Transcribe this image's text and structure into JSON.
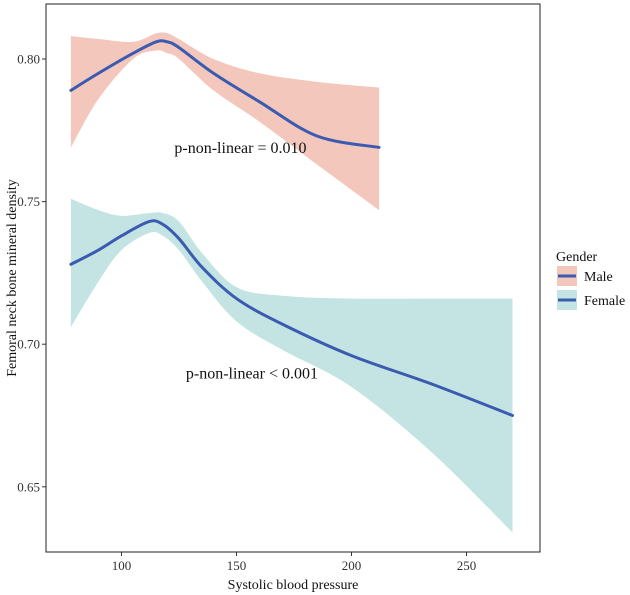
{
  "chart_data": {
    "type": "line",
    "title": "",
    "xlabel": "Systolic blood pressure",
    "ylabel": "Femoral neck bone mineral density",
    "xlim": [
      70,
      280
    ],
    "ylim": [
      0.62,
      0.82
    ],
    "xticks": [
      100,
      150,
      200,
      250
    ],
    "xtick_labels": [
      "100",
      "150",
      "200",
      "250"
    ],
    "yticks": [
      0.65,
      0.7,
      0.75,
      0.8
    ],
    "ytick_labels": [
      "0.65",
      "0.70",
      "0.75",
      "0.80"
    ],
    "grid": false,
    "legend": {
      "title": "Gender",
      "position": "right",
      "entries": [
        "Male",
        "Female"
      ]
    },
    "series": [
      {
        "name": "Male",
        "line_color": "#3B5BB0",
        "ribbon_color": "#F4C7BD",
        "x": [
          78,
          90,
          105,
          115,
          120,
          125,
          140,
          160,
          185,
          212
        ],
        "y": [
          0.789,
          0.795,
          0.802,
          0.806,
          0.806,
          0.804,
          0.795,
          0.785,
          0.773,
          0.769
        ],
        "lower": [
          0.769,
          0.786,
          0.8,
          0.803,
          0.802,
          0.8,
          0.789,
          0.778,
          0.763,
          0.747
        ],
        "upper": [
          0.808,
          0.807,
          0.806,
          0.809,
          0.809,
          0.807,
          0.8,
          0.795,
          0.792,
          0.79
        ]
      },
      {
        "name": "Female",
        "line_color": "#3B5BB0",
        "ribbon_color": "#C4E4E3",
        "x": [
          78,
          90,
          100,
          112,
          118,
          125,
          135,
          150,
          170,
          200,
          235,
          270
        ],
        "y": [
          0.728,
          0.733,
          0.738,
          0.743,
          0.742,
          0.737,
          0.727,
          0.716,
          0.707,
          0.696,
          0.686,
          0.675
        ],
        "lower": [
          0.706,
          0.722,
          0.733,
          0.739,
          0.738,
          0.733,
          0.722,
          0.708,
          0.698,
          0.685,
          0.662,
          0.634
        ],
        "upper": [
          0.751,
          0.747,
          0.745,
          0.746,
          0.746,
          0.743,
          0.732,
          0.72,
          0.717,
          0.716,
          0.716,
          0.716
        ]
      }
    ],
    "annotations": [
      {
        "text": "p-non-linear = 0.010",
        "x": 123,
        "y": 0.767
      },
      {
        "text": "p-non-linear < 0.001",
        "x": 128,
        "y": 0.688
      }
    ]
  }
}
